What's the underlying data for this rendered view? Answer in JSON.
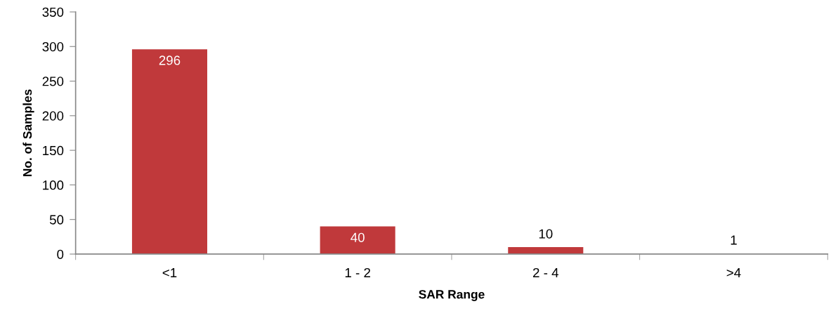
{
  "chart_data": {
    "type": "bar",
    "xlabel": "SAR Range",
    "ylabel": "No. of Samples",
    "categories": [
      "<1",
      "1 - 2",
      "2 - 4",
      ">4"
    ],
    "values": [
      296,
      40,
      10,
      1
    ],
    "color": "#c0393b",
    "ylim": [
      0,
      350
    ],
    "yticks": [
      0,
      50,
      100,
      150,
      200,
      250,
      300,
      350
    ],
    "grid": false,
    "legend": false,
    "data_labels": true
  }
}
